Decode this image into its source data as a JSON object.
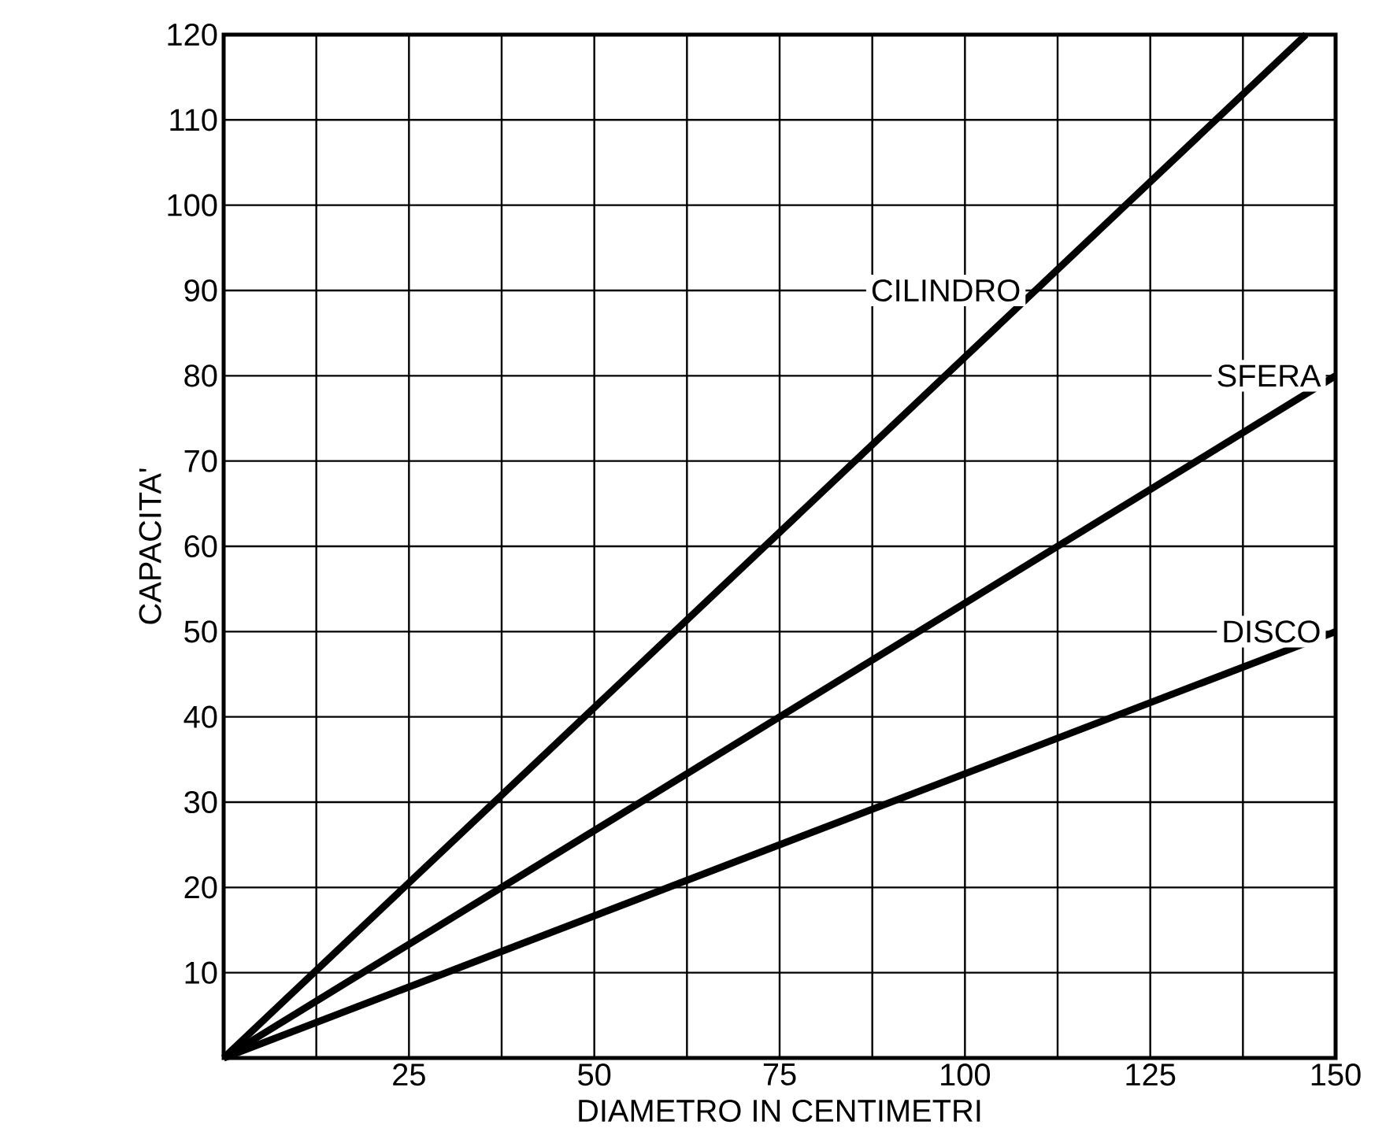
{
  "chart_data": {
    "type": "line",
    "xlabel": "DIAMETRO IN CENTIMETRI",
    "ylabel": "CAPACITA'",
    "xlim": [
      0,
      150
    ],
    "ylim": [
      0,
      120
    ],
    "xticks": [
      {
        "value": 12.5,
        "label": null
      },
      25,
      {
        "value": 37.5,
        "label": null
      },
      50,
      {
        "value": 62.5,
        "label": null
      },
      75,
      {
        "value": 87.5,
        "label": null
      },
      100,
      {
        "value": 112.5,
        "label": null
      },
      125,
      {
        "value": 137.5,
        "label": null
      },
      150
    ],
    "yticks": [
      10,
      20,
      30,
      40,
      50,
      60,
      70,
      80,
      90,
      100,
      110,
      120
    ],
    "grid": true,
    "series": [
      {
        "name": "CILINDRO",
        "color": "#000000",
        "x": [
          0,
          146
        ],
        "values": [
          0,
          120
        ]
      },
      {
        "name": "SFERA",
        "color": "#000000",
        "x": [
          0,
          150
        ],
        "values": [
          0,
          80
        ]
      },
      {
        "name": "DISCO",
        "color": "#000000",
        "x": [
          0,
          150
        ],
        "values": [
          0,
          50
        ]
      }
    ]
  }
}
